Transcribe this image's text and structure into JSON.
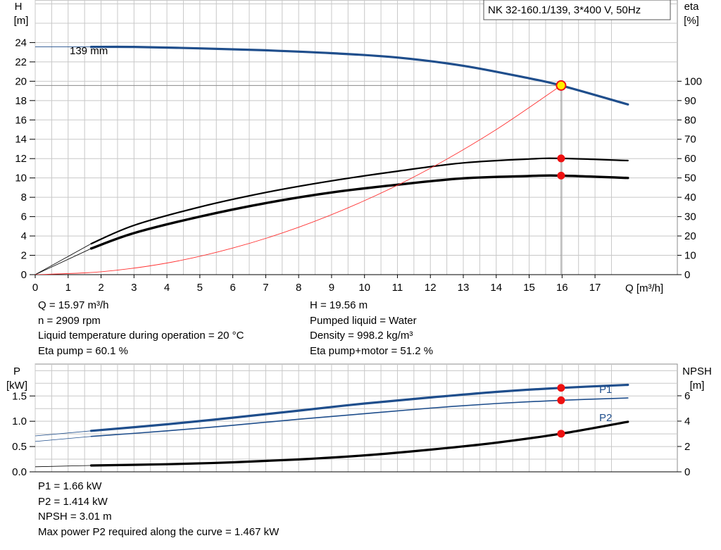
{
  "title_box": "NK 32-160.1/139, 3*400 V, 50Hz",
  "top_chart": {
    "left_axis": {
      "symbol": "H",
      "unit": "[m]",
      "ticks": [
        0,
        2,
        4,
        6,
        8,
        10,
        12,
        14,
        16,
        18,
        20,
        22,
        24
      ],
      "range": [
        0,
        28.4
      ]
    },
    "right_axis": {
      "symbol": "eta",
      "unit": "[%]",
      "ticks": [
        0,
        10,
        20,
        30,
        40,
        50,
        60,
        70,
        80,
        90,
        100
      ],
      "range": [
        0,
        142
      ]
    },
    "x_axis": {
      "label": "Q [m³/h]",
      "ticks": [
        0,
        1,
        2,
        3,
        4,
        5,
        6,
        7,
        8,
        9,
        10,
        11,
        12,
        13,
        14,
        15,
        16,
        17
      ],
      "range": [
        0,
        19.5
      ]
    },
    "impeller_label": "139 mm"
  },
  "top_info_left": [
    "Q = 15.97 m³/h",
    "n = 2909 rpm",
    "Liquid temperature during operation = 20 °C",
    "Eta pump = 60.1 %"
  ],
  "top_info_right": [
    "H = 19.56 m",
    "Pumped liquid = Water",
    "Density = 998.2 kg/m³",
    "Eta pump+motor = 51.2 %"
  ],
  "bottom_chart": {
    "left_axis": {
      "symbol": "P",
      "unit": "[kW]",
      "ticks": [
        "0.0",
        "0.5",
        "1.0",
        "1.5"
      ],
      "range": [
        0,
        2.13
      ]
    },
    "right_axis": {
      "symbol": "NPSH",
      "unit": "[m]",
      "ticks": [
        "0",
        "2",
        "4",
        "6"
      ],
      "range": [
        0,
        8.5
      ]
    },
    "series_labels": {
      "p1": "P1",
      "p2": "P2"
    }
  },
  "bottom_info": [
    "P1 = 1.66 kW",
    "P2 = 1.414 kW",
    "NPSH = 3.01 m",
    "Max power P2 required along the curve = 1.467 kW"
  ],
  "colors": {
    "blue": "#1f4e8c",
    "black": "#000000",
    "thin_red": "#ff3333",
    "marker_red": "#ee1111",
    "marker_yellow": "#ffee00",
    "grid": "#c8c8c8"
  },
  "chart_data": [
    {
      "type": "line",
      "title": "NK 32-160.1/139, 3*400 V, 50Hz",
      "xlabel": "Q [m³/h]",
      "ylabel": "H [m]",
      "y2label": "eta [%]",
      "xlim": [
        0,
        19.5
      ],
      "ylim": [
        0,
        28.4
      ],
      "y2lim": [
        0,
        142
      ],
      "grid": true,
      "duty_point": {
        "Q": 15.97,
        "H": 19.56
      },
      "series": [
        {
          "name": "139 mm",
          "axis": "left",
          "style": "head",
          "x": [
            1.7,
            3,
            5,
            7,
            9,
            11,
            13,
            15,
            15.97,
            18
          ],
          "y": [
            23.55,
            23.55,
            23.4,
            23.2,
            22.9,
            22.45,
            21.6,
            20.3,
            19.56,
            17.6
          ],
          "extension_x": [
            0,
            1.7
          ],
          "extension_y": [
            23.55,
            23.55
          ]
        },
        {
          "name": "",
          "axis": "right",
          "style": "eta_pump",
          "x": [
            1.7,
            3,
            5,
            7,
            9,
            11,
            13,
            15,
            15.97,
            18
          ],
          "y": [
            16,
            25.5,
            35,
            42.5,
            48.5,
            53.5,
            57.8,
            59.8,
            60.1,
            59
          ],
          "extension_x": [
            0,
            1.7
          ],
          "extension_y": [
            0,
            16
          ]
        },
        {
          "name": "",
          "axis": "right",
          "style": "eta_total",
          "x": [
            1.7,
            3,
            5,
            7,
            9,
            11,
            13,
            15,
            15.97,
            18
          ],
          "y": [
            13.5,
            21.5,
            30,
            37,
            42.5,
            46.5,
            49.8,
            51,
            51.2,
            50
          ],
          "extension_x": [
            0,
            1.7
          ],
          "extension_y": [
            0,
            13.5
          ]
        },
        {
          "name": "",
          "axis": "left",
          "style": "system",
          "x": [
            0,
            2,
            4,
            6,
            8,
            10,
            12,
            14,
            15.97
          ],
          "y": [
            0,
            0.3,
            1.2,
            2.75,
            4.9,
            7.65,
            11.0,
            15.0,
            19.56
          ]
        }
      ]
    },
    {
      "type": "line",
      "xlabel": "Q [m³/h]",
      "ylabel": "P [kW]",
      "y2label": "NPSH [m]",
      "xlim": [
        0,
        19.5
      ],
      "ylim": [
        0,
        2.13
      ],
      "y2lim": [
        0,
        8.5
      ],
      "grid": true,
      "series": [
        {
          "name": "P1",
          "axis": "left",
          "style": "p1",
          "x": [
            1.7,
            4,
            6,
            8,
            10,
            12,
            14,
            15.97,
            18
          ],
          "y": [
            0.81,
            0.94,
            1.07,
            1.21,
            1.35,
            1.47,
            1.58,
            1.66,
            1.72
          ],
          "extension_x": [
            0,
            1.7
          ],
          "extension_y": [
            0.71,
            0.81
          ]
        },
        {
          "name": "P2",
          "axis": "left",
          "style": "p2",
          "x": [
            1.7,
            4,
            6,
            8,
            10,
            12,
            14,
            15.97,
            18
          ],
          "y": [
            0.7,
            0.81,
            0.92,
            1.04,
            1.15,
            1.26,
            1.35,
            1.414,
            1.46
          ],
          "extension_x": [
            0,
            1.7
          ],
          "extension_y": [
            0.6,
            0.7
          ]
        },
        {
          "name": "",
          "axis": "right",
          "style": "npsh",
          "x": [
            1.7,
            4,
            6,
            8,
            10,
            12,
            14,
            15.97,
            18
          ],
          "y": [
            0.5,
            0.6,
            0.75,
            0.98,
            1.3,
            1.75,
            2.3,
            3.01,
            3.95
          ],
          "extension_x": [
            0,
            1.7
          ],
          "extension_y": [
            0.4,
            0.5
          ]
        }
      ],
      "markers": [
        {
          "axis": "left",
          "x": 15.97,
          "y": 1.66
        },
        {
          "axis": "left",
          "x": 15.97,
          "y": 1.414
        },
        {
          "axis": "right",
          "x": 15.97,
          "y": 3.01
        }
      ]
    }
  ]
}
